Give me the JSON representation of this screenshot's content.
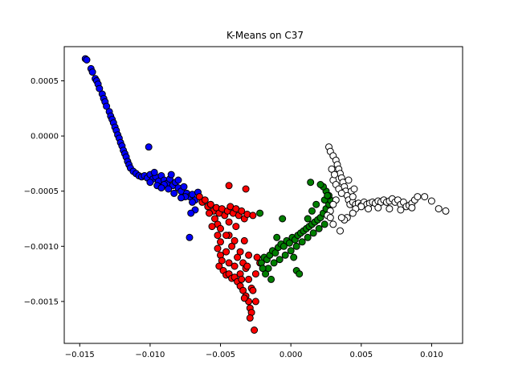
{
  "chart_data": {
    "type": "scatter",
    "title": "K-Means on C37",
    "xlabel": "",
    "ylabel": "",
    "xlim": [
      -0.0161,
      0.0122
    ],
    "ylim": [
      -0.00188,
      0.00081
    ],
    "xticks": [
      -0.015,
      -0.01,
      -0.005,
      0.0,
      0.005,
      0.01
    ],
    "xtick_labels": [
      "−0.015",
      "−0.010",
      "−0.005",
      "0.000",
      "0.005",
      "0.010"
    ],
    "yticks": [
      0.0005,
      0.0,
      -0.0005,
      -0.001,
      -0.0015
    ],
    "ytick_labels": [
      "0.0005",
      "0.0000",
      "−0.0005",
      "−0.0010",
      "−0.0015"
    ],
    "grid": false,
    "marker_edge_color": "#000000",
    "series": [
      {
        "color": "#0000ff",
        "points": [
          [
            -0.0146,
            0.0007
          ],
          [
            -0.0145,
            0.00069
          ],
          [
            -0.0142,
            0.00061
          ],
          [
            -0.0141,
            0.00058
          ],
          [
            -0.0139,
            0.00052
          ],
          [
            -0.0138,
            0.0005
          ],
          [
            -0.0137,
            0.00047
          ],
          [
            -0.0136,
            0.00043
          ],
          [
            -0.0134,
            0.00038
          ],
          [
            -0.0133,
            0.00034
          ],
          [
            -0.0132,
            0.00031
          ],
          [
            -0.0131,
            0.00027
          ],
          [
            -0.0129,
            0.00022
          ],
          [
            -0.0128,
            0.00018
          ],
          [
            -0.0127,
            0.00015
          ],
          [
            -0.0126,
            0.00012
          ],
          [
            -0.0125,
            8e-05
          ],
          [
            -0.0124,
            5e-05
          ],
          [
            -0.0123,
            1e-05
          ],
          [
            -0.0122,
            -2e-05
          ],
          [
            -0.0121,
            -6e-05
          ],
          [
            -0.012,
            -9e-05
          ],
          [
            -0.0119,
            -0.00013
          ],
          [
            -0.0118,
            -0.00016
          ],
          [
            -0.0117,
            -0.00019
          ],
          [
            -0.0116,
            -0.00023
          ],
          [
            -0.0115,
            -0.00026
          ],
          [
            -0.0114,
            -0.00029
          ],
          [
            -0.0112,
            -0.00032
          ],
          [
            -0.011,
            -0.00034
          ],
          [
            -0.0108,
            -0.00036
          ],
          [
            -0.0106,
            -0.00037
          ],
          [
            -0.0104,
            -0.00036
          ],
          [
            -0.0102,
            -0.00038
          ],
          [
            -0.01,
            -0.00035
          ],
          [
            -0.0098,
            -0.00039
          ],
          [
            -0.0096,
            -0.00037
          ],
          [
            -0.0094,
            -0.00041
          ],
          [
            -0.0092,
            -0.00036
          ],
          [
            -0.009,
            -0.0004
          ],
          [
            -0.0088,
            -0.00043
          ],
          [
            -0.0086,
            -0.00039
          ],
          [
            -0.0084,
            -0.00045
          ],
          [
            -0.0082,
            -0.00042
          ],
          [
            -0.008,
            -0.00047
          ],
          [
            -0.0078,
            -0.0005
          ],
          [
            -0.0076,
            -0.00046
          ],
          [
            -0.0074,
            -0.00052
          ],
          [
            -0.0072,
            -0.00055
          ],
          [
            -0.007,
            -0.00053
          ],
          [
            -0.0068,
            -0.00058
          ],
          [
            -0.0066,
            -0.00051
          ],
          [
            -0.01,
            -0.00042
          ],
          [
            -0.0095,
            -0.00045
          ],
          [
            -0.009,
            -0.00044
          ],
          [
            -0.0087,
            -0.00048
          ],
          [
            -0.0085,
            -0.00035
          ],
          [
            -0.008,
            -0.0004
          ],
          [
            -0.0075,
            -0.00055
          ],
          [
            -0.007,
            -0.0006
          ],
          [
            -0.0068,
            -0.00067
          ],
          [
            -0.0071,
            -0.0007
          ],
          [
            -0.0101,
            -0.0001
          ],
          [
            -0.0072,
            -0.00092
          ],
          [
            -0.0078,
            -0.00056
          ],
          [
            -0.0083,
            -0.00052
          ],
          [
            -0.0092,
            -0.00047
          ],
          [
            -0.0097,
            -0.00033
          ]
        ]
      },
      {
        "color": "#ff0000",
        "points": [
          [
            -0.0065,
            -0.00055
          ],
          [
            -0.0063,
            -0.0006
          ],
          [
            -0.0061,
            -0.00058
          ],
          [
            -0.0059,
            -0.00064
          ],
          [
            -0.0057,
            -0.00062
          ],
          [
            -0.0055,
            -0.00068
          ],
          [
            -0.0053,
            -0.00065
          ],
          [
            -0.0051,
            -0.0007
          ],
          [
            -0.0049,
            -0.00066
          ],
          [
            -0.0047,
            -0.00072
          ],
          [
            -0.0045,
            -0.00068
          ],
          [
            -0.0043,
            -0.00064
          ],
          [
            -0.0041,
            -0.0007
          ],
          [
            -0.0039,
            -0.00066
          ],
          [
            -0.0037,
            -0.00072
          ],
          [
            -0.0035,
            -0.00068
          ],
          [
            -0.0033,
            -0.00075
          ],
          [
            -0.0031,
            -0.00071
          ],
          [
            -0.0054,
            -0.00075
          ],
          [
            -0.0052,
            -0.0008
          ],
          [
            -0.005,
            -0.00084
          ],
          [
            -0.0052,
            -0.0009
          ],
          [
            -0.005,
            -0.00096
          ],
          [
            -0.0052,
            -0.00102
          ],
          [
            -0.005,
            -0.00108
          ],
          [
            -0.0049,
            -0.00113
          ],
          [
            -0.0051,
            -0.00118
          ],
          [
            -0.0048,
            -0.00122
          ],
          [
            -0.0046,
            -0.00126
          ],
          [
            -0.0044,
            -0.00125
          ],
          [
            -0.0042,
            -0.00129
          ],
          [
            -0.004,
            -0.00128
          ],
          [
            -0.0038,
            -0.00132
          ],
          [
            -0.0036,
            -0.00136
          ],
          [
            -0.0034,
            -0.0014
          ],
          [
            -0.0032,
            -0.00145
          ],
          [
            -0.003,
            -0.0015
          ],
          [
            -0.0029,
            -0.00156
          ],
          [
            -0.0028,
            -0.0016
          ],
          [
            -0.0029,
            -0.00165
          ],
          [
            -0.0026,
            -0.00176
          ],
          [
            -0.0044,
            -0.0009
          ],
          [
            -0.0042,
            -0.001
          ],
          [
            -0.004,
            -0.00095
          ],
          [
            -0.0038,
            -0.0011
          ],
          [
            -0.0036,
            -0.00105
          ],
          [
            -0.0034,
            -0.00115
          ],
          [
            -0.0032,
            -0.0012
          ],
          [
            -0.0046,
            -0.00105
          ],
          [
            -0.0044,
            -0.00115
          ],
          [
            -0.004,
            -0.00118
          ],
          [
            -0.0036,
            -0.00125
          ],
          [
            -0.003,
            -0.0013
          ],
          [
            -0.0028,
            -0.00138
          ],
          [
            -0.0025,
            -0.00125
          ],
          [
            -0.0024,
            -0.0011
          ],
          [
            -0.0022,
            -0.00115
          ],
          [
            -0.0056,
            -0.00082
          ],
          [
            -0.0058,
            -0.0007
          ],
          [
            -0.0046,
            -0.0009
          ],
          [
            -0.0044,
            -0.00078
          ],
          [
            -0.0039,
            -0.00082
          ],
          [
            -0.0033,
            -0.00095
          ],
          [
            -0.003,
            -0.00108
          ],
          [
            -0.0032,
            -0.00048
          ],
          [
            -0.0044,
            -0.00045
          ],
          [
            -0.0027,
            -0.00072
          ],
          [
            -0.0033,
            -0.00147
          ],
          [
            -0.0035,
            -0.0013
          ],
          [
            -0.0031,
            -0.00118
          ],
          [
            -0.0027,
            -0.0014
          ],
          [
            -0.0025,
            -0.0015
          ]
        ]
      },
      {
        "color": "#007f00",
        "points": [
          [
            -0.0021,
            -0.00115
          ],
          [
            -0.0019,
            -0.0011
          ],
          [
            -0.0017,
            -0.00112
          ],
          [
            -0.0015,
            -0.00108
          ],
          [
            -0.0013,
            -0.00104
          ],
          [
            -0.0011,
            -0.00106
          ],
          [
            -0.0009,
            -0.00101
          ],
          [
            -0.0007,
            -0.00098
          ],
          [
            -0.0005,
            -0.001
          ],
          [
            -0.0003,
            -0.00095
          ],
          [
            -0.0001,
            -0.00097
          ],
          [
            0.0001,
            -0.00092
          ],
          [
            0.0003,
            -0.00094
          ],
          [
            0.0005,
            -0.0009
          ],
          [
            0.0007,
            -0.00088
          ],
          [
            0.0009,
            -0.00086
          ],
          [
            0.0011,
            -0.00084
          ],
          [
            0.0013,
            -0.00082
          ],
          [
            0.0015,
            -0.0008
          ],
          [
            0.0017,
            -0.00078
          ],
          [
            0.0019,
            -0.00076
          ],
          [
            0.0021,
            -0.00074
          ],
          [
            0.0023,
            -0.0007
          ],
          [
            0.0025,
            -0.00066
          ],
          [
            0.0027,
            -0.00062
          ],
          [
            0.0028,
            -0.00058
          ],
          [
            0.0027,
            -0.00054
          ],
          [
            0.0025,
            -0.0005
          ],
          [
            0.0023,
            -0.00046
          ],
          [
            0.0021,
            -0.00044
          ],
          [
            -0.0018,
            -0.00125
          ],
          [
            -0.0016,
            -0.0012
          ],
          [
            -0.0012,
            -0.00115
          ],
          [
            -0.0008,
            -0.00112
          ],
          [
            -0.0004,
            -0.00108
          ],
          [
            0.0,
            -0.00104
          ],
          [
            0.0004,
            -0.001
          ],
          [
            0.0008,
            -0.00096
          ],
          [
            0.0012,
            -0.00092
          ],
          [
            0.0016,
            -0.00088
          ],
          [
            0.002,
            -0.00084
          ],
          [
            0.0024,
            -0.0008
          ],
          [
            -0.0022,
            -0.0007
          ],
          [
            -0.0006,
            -0.00075
          ],
          [
            0.0004,
            -0.00122
          ],
          [
            0.0006,
            -0.00125
          ],
          [
            0.0002,
            -0.0011
          ],
          [
            -0.001,
            -0.00092
          ],
          [
            0.0012,
            -0.00075
          ],
          [
            0.0015,
            -0.00068
          ],
          [
            0.0014,
            -0.00042
          ],
          [
            0.0018,
            -0.00062
          ],
          [
            0.0024,
            -0.00058
          ],
          [
            0.0026,
            -0.00054
          ],
          [
            -0.0014,
            -0.0013
          ],
          [
            -0.002,
            -0.0012
          ]
        ]
      },
      {
        "color": "#ffffff",
        "points": [
          [
            0.0027,
            -0.0001
          ],
          [
            0.0028,
            -0.00014
          ],
          [
            0.003,
            -0.00018
          ],
          [
            0.0032,
            -0.00022
          ],
          [
            0.0033,
            -0.00026
          ],
          [
            0.0034,
            -0.0003
          ],
          [
            0.0035,
            -0.00034
          ],
          [
            0.0036,
            -0.00038
          ],
          [
            0.0037,
            -0.00042
          ],
          [
            0.0038,
            -0.00046
          ],
          [
            0.0039,
            -0.0005
          ],
          [
            0.004,
            -0.00054
          ],
          [
            0.0041,
            -0.00058
          ],
          [
            0.0042,
            -0.00062
          ],
          [
            0.003,
            -0.0004
          ],
          [
            0.0032,
            -0.00044
          ],
          [
            0.0034,
            -0.00048
          ],
          [
            0.0036,
            -0.00052
          ],
          [
            0.0032,
            -0.00058
          ],
          [
            0.003,
            -0.00062
          ],
          [
            0.0028,
            -0.00068
          ],
          [
            0.0026,
            -0.00072
          ],
          [
            0.0044,
            -0.0006
          ],
          [
            0.0046,
            -0.00062
          ],
          [
            0.0048,
            -0.00061
          ],
          [
            0.005,
            -0.00063
          ],
          [
            0.0052,
            -0.0006
          ],
          [
            0.0054,
            -0.00062
          ],
          [
            0.0056,
            -0.00061
          ],
          [
            0.0058,
            -0.0006
          ],
          [
            0.006,
            -0.00061
          ],
          [
            0.0062,
            -0.00059
          ],
          [
            0.0064,
            -0.0006
          ],
          [
            0.0066,
            -0.00058
          ],
          [
            0.0068,
            -0.0006
          ],
          [
            0.007,
            -0.00059
          ],
          [
            0.0072,
            -0.00057
          ],
          [
            0.0074,
            -0.0006
          ],
          [
            0.0076,
            -0.00058
          ],
          [
            0.0078,
            -0.00062
          ],
          [
            0.008,
            -0.0006
          ],
          [
            0.0082,
            -0.00064
          ],
          [
            0.0084,
            -0.00063
          ],
          [
            0.0086,
            -0.00061
          ],
          [
            0.0088,
            -0.00058
          ],
          [
            0.009,
            -0.00055
          ],
          [
            0.0095,
            -0.00055
          ],
          [
            0.01,
            -0.00059
          ],
          [
            0.0105,
            -0.00066
          ],
          [
            0.011,
            -0.00068
          ],
          [
            0.0086,
            -0.00065
          ],
          [
            0.0078,
            -0.00067
          ],
          [
            0.007,
            -0.00066
          ],
          [
            0.0062,
            -0.00065
          ],
          [
            0.0055,
            -0.00066
          ],
          [
            0.005,
            -0.00064
          ],
          [
            0.0046,
            -0.00066
          ],
          [
            0.0044,
            -0.0007
          ],
          [
            0.004,
            -0.00074
          ],
          [
            0.0038,
            -0.00076
          ],
          [
            0.0036,
            -0.00074
          ],
          [
            0.0035,
            -0.00086
          ],
          [
            0.003,
            -0.0008
          ],
          [
            0.0028,
            -0.00074
          ],
          [
            0.0041,
            -0.0004
          ],
          [
            0.0043,
            -0.0005
          ],
          [
            0.0044,
            -0.00055
          ],
          [
            0.0045,
            -0.00048
          ],
          [
            0.0029,
            -0.0003
          ],
          [
            0.0031,
            -0.00035
          ]
        ]
      }
    ]
  }
}
